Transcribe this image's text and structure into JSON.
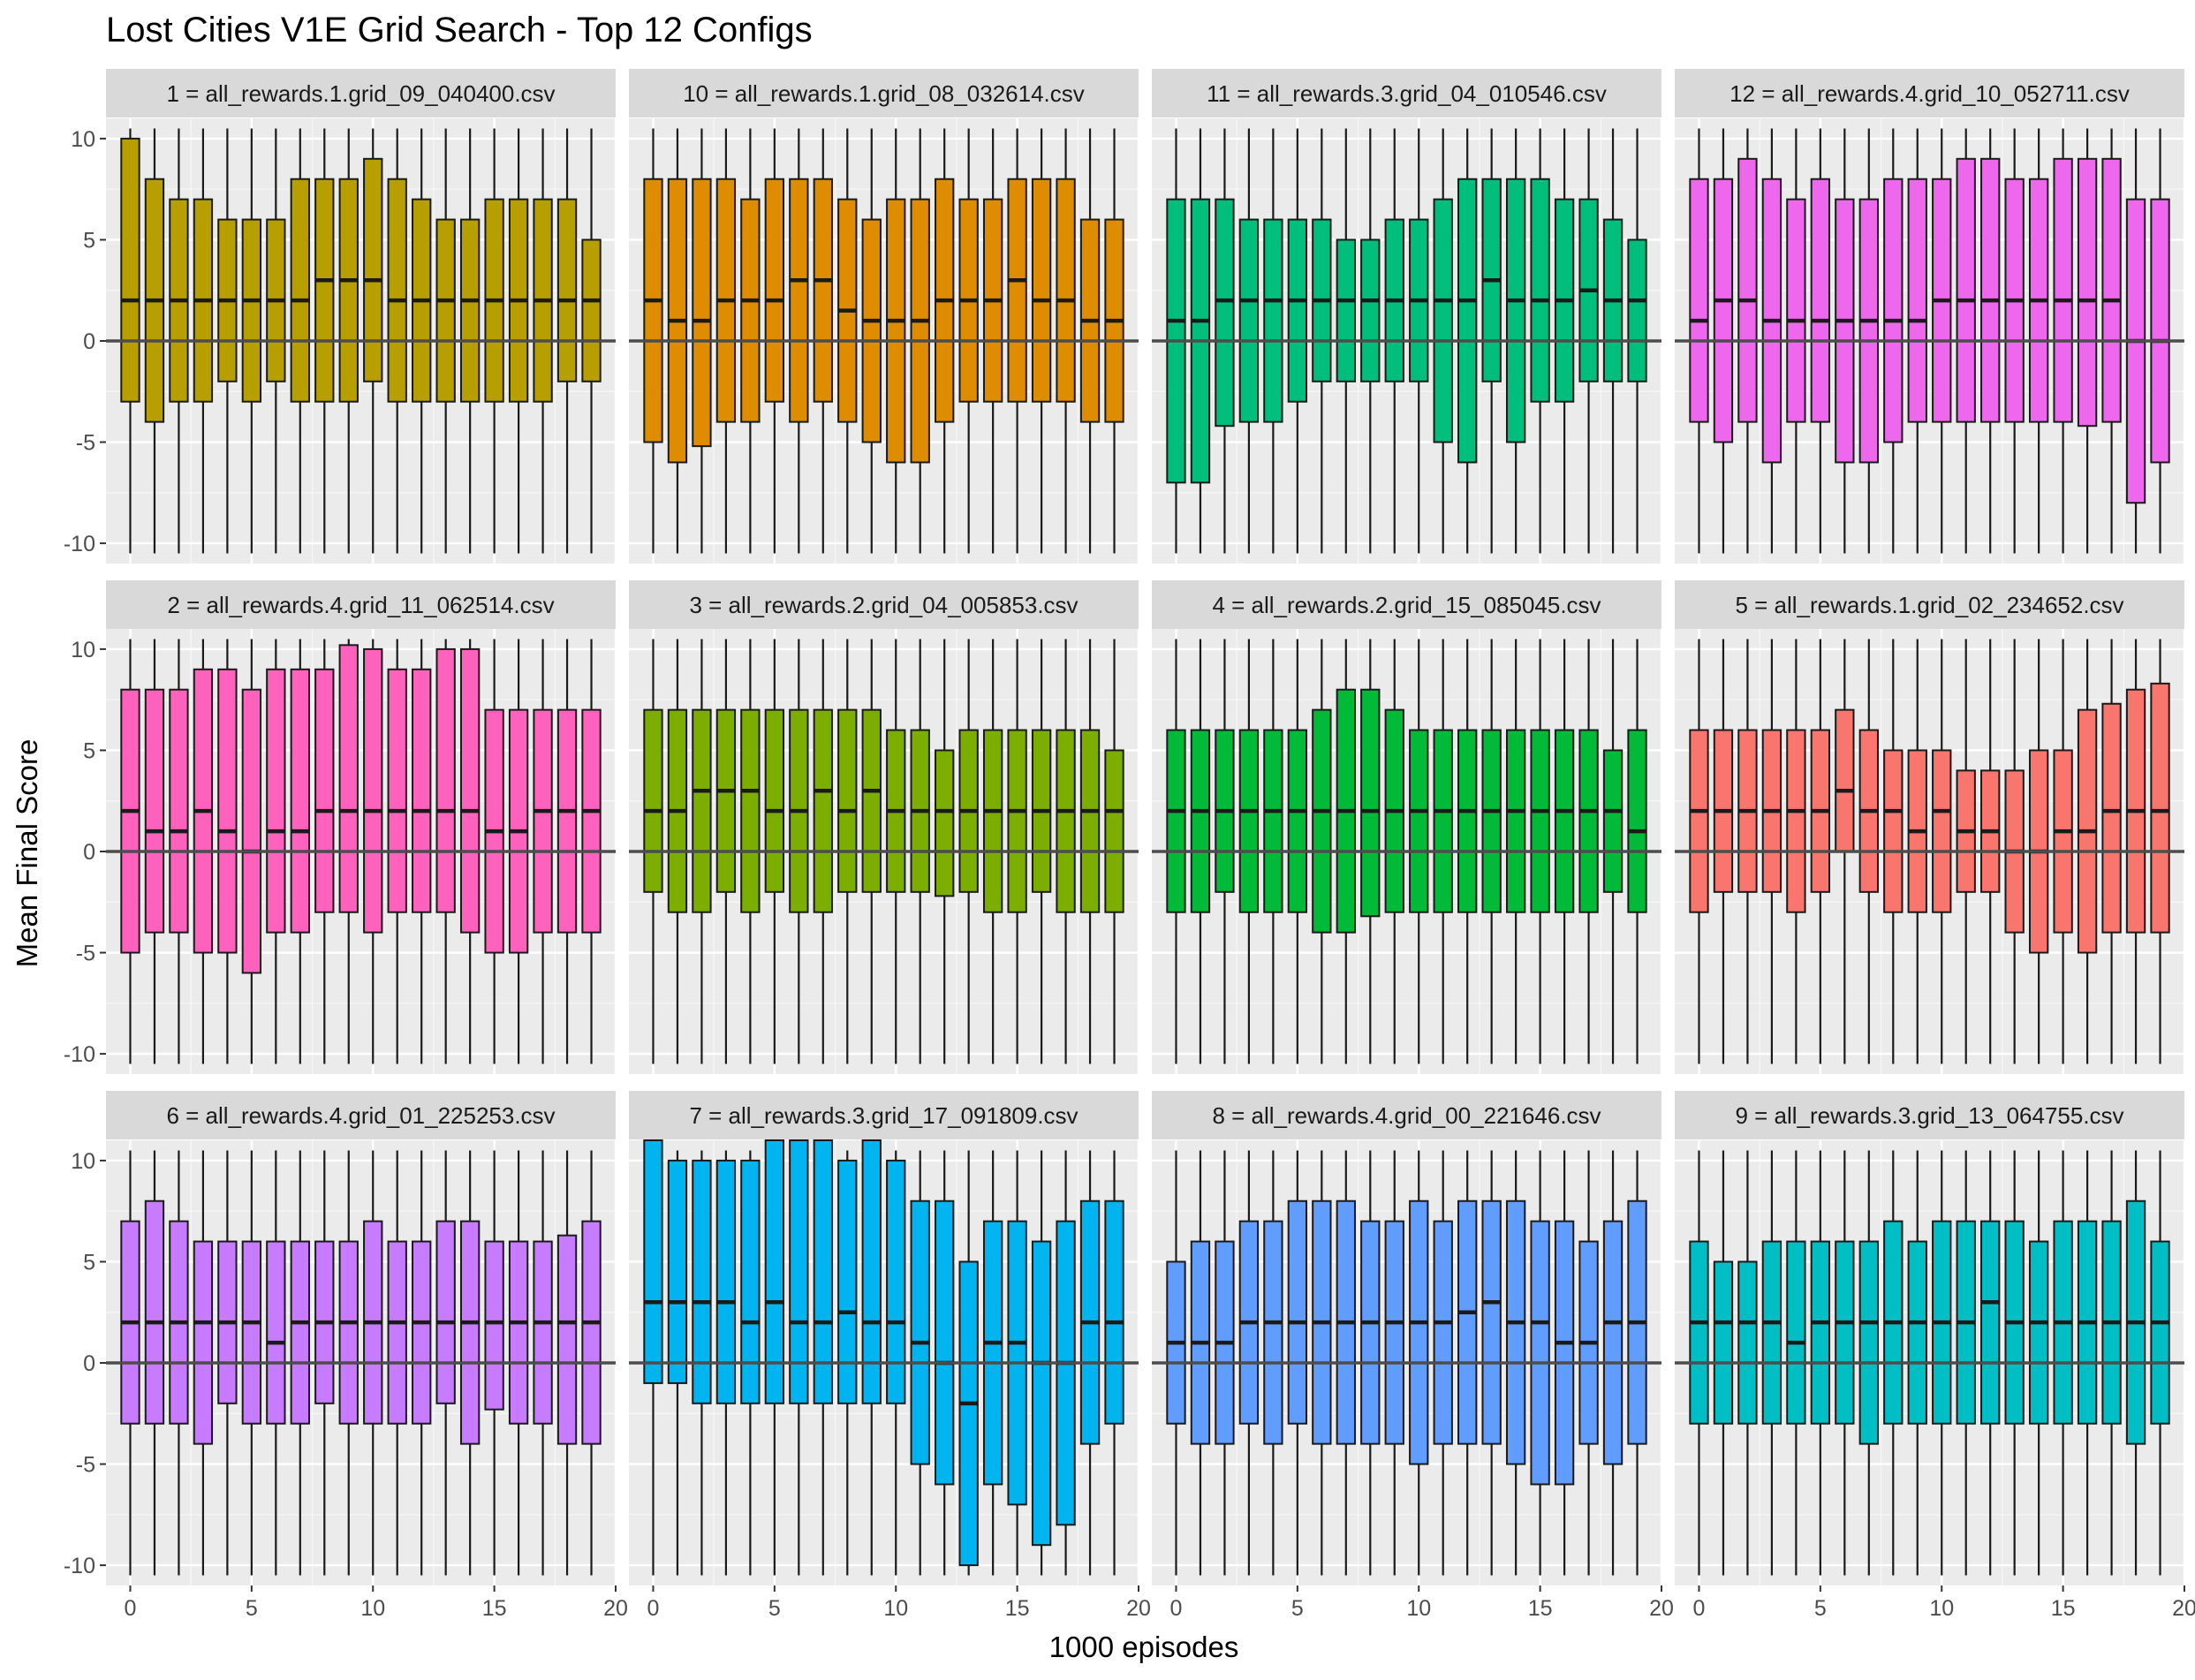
{
  "chart_data": {
    "type": "boxplot",
    "title": "Lost Cities V1E Grid Search - Top 12 Configs",
    "xlabel": "1000 episodes",
    "ylabel": "Mean Final Score",
    "xlim": [
      -1,
      20
    ],
    "ylim": [
      -11,
      11
    ],
    "x_ticks": [
      0,
      5,
      10,
      15,
      20
    ],
    "y_ticks": [
      -10,
      -5,
      0,
      5,
      10
    ],
    "whisker_range": [
      -10.5,
      10.5
    ],
    "reference_line_y": 0,
    "grid": true,
    "layout": "facet_wrap 3 rows x 4 columns",
    "panels": [
      {
        "label": "1 = all_rewards.1.grid_09_040400.csv",
        "color": "#B79F00",
        "q1": [
          -3,
          -4,
          -3,
          -3,
          -2,
          -3,
          -2,
          -3,
          -3,
          -3,
          -2,
          -3,
          -3,
          -3,
          -3,
          -3,
          -3,
          -3,
          -2,
          -2
        ],
        "median": [
          2,
          2,
          2,
          2,
          2,
          2,
          2,
          2,
          3,
          3,
          3,
          2,
          2,
          2,
          2,
          2,
          2,
          2,
          2,
          2
        ],
        "q3": [
          10,
          8,
          7,
          7,
          6,
          6,
          6,
          8,
          8,
          8,
          9,
          8,
          7,
          6,
          6,
          7,
          7,
          7,
          7,
          5
        ]
      },
      {
        "label": "10 = all_rewards.1.grid_08_032614.csv",
        "color": "#DE8C00",
        "q1": [
          -5,
          -6,
          -5.2,
          -4,
          -4,
          -3,
          -4,
          -3,
          -4,
          -5,
          -6,
          -6,
          -4,
          -3,
          -3,
          -3,
          -3,
          -3,
          -4,
          -4
        ],
        "median": [
          2,
          1,
          1,
          2,
          2,
          2,
          3,
          3,
          1.5,
          1,
          1,
          1,
          2,
          2,
          2,
          3,
          2,
          2,
          1,
          1
        ],
        "q3": [
          8,
          8,
          8,
          8,
          7,
          8,
          8,
          8,
          7,
          6,
          7,
          7,
          8,
          7,
          7,
          8,
          8,
          8,
          6,
          6
        ]
      },
      {
        "label": "11 = all_rewards.3.grid_04_010546.csv",
        "color": "#00BF7D",
        "q1": [
          -7,
          -7,
          -4.2,
          -4,
          -4,
          -3,
          -2,
          -2,
          -2,
          -2,
          -2,
          -5,
          -6,
          -2,
          -5,
          -3,
          -3,
          -2,
          -2,
          -2
        ],
        "median": [
          1,
          1,
          2,
          2,
          2,
          2,
          2,
          2,
          2,
          2,
          2,
          2,
          2,
          3,
          2,
          2,
          2,
          2.5,
          2,
          2
        ],
        "q3": [
          7,
          7,
          7,
          6,
          6,
          6,
          6,
          5,
          5,
          6,
          6,
          7,
          8,
          8,
          8,
          8,
          7,
          7,
          6,
          5
        ]
      },
      {
        "label": "12 = all_rewards.4.grid_10_052711.csv",
        "color": "#ED68ED",
        "q1": [
          -4,
          -5,
          -4,
          -6,
          -4,
          -4,
          -6,
          -6,
          -5,
          -4,
          -4,
          -4,
          -4,
          -4,
          -4,
          -4,
          -4.2,
          -4,
          -8,
          -6
        ],
        "median": [
          1,
          2,
          2,
          1,
          1,
          1,
          1,
          1,
          1,
          1,
          2,
          2,
          2,
          2,
          2,
          2,
          2,
          2,
          0,
          0
        ],
        "q3": [
          8,
          8,
          9,
          8,
          7,
          8,
          7,
          7,
          8,
          8,
          8,
          9,
          9,
          8,
          8,
          9,
          9,
          9,
          7,
          7
        ]
      },
      {
        "label": "2 = all_rewards.4.grid_11_062514.csv",
        "color": "#FF62BC",
        "q1": [
          -5,
          -4,
          -4,
          -5,
          -5,
          -6,
          -4,
          -4,
          -3,
          -3,
          -4,
          -3,
          -3,
          -3,
          -4,
          -5,
          -5,
          -4,
          -4,
          -4
        ],
        "median": [
          2,
          1,
          1,
          2,
          1,
          0,
          1,
          1,
          2,
          2,
          2,
          2,
          2,
          2,
          2,
          1,
          1,
          2,
          2,
          2
        ],
        "q3": [
          8,
          8,
          8,
          9,
          9,
          8,
          9,
          9,
          9,
          10.2,
          10,
          9,
          9,
          10,
          10,
          7,
          7,
          7,
          7,
          7
        ]
      },
      {
        "label": "3 = all_rewards.2.grid_04_005853.csv",
        "color": "#7CAE00",
        "q1": [
          -2,
          -3,
          -3,
          -2,
          -3,
          -2,
          -3,
          -3,
          -2,
          -2,
          -2,
          -2,
          -2.2,
          -2,
          -3,
          -3,
          -2,
          -3,
          -3,
          -3
        ],
        "median": [
          2,
          2,
          3,
          3,
          3,
          2,
          2,
          3,
          2,
          3,
          2,
          2,
          2,
          2,
          2,
          2,
          2,
          2,
          2,
          2
        ],
        "q3": [
          7,
          7,
          7,
          7,
          7,
          7,
          7,
          7,
          7,
          7,
          6,
          6,
          5,
          6,
          6,
          6,
          6,
          6,
          6,
          5
        ]
      },
      {
        "label": "4 = all_rewards.2.grid_15_085045.csv",
        "color": "#00BA38",
        "q1": [
          -3,
          -3,
          -2,
          -3,
          -3,
          -3,
          -4,
          -4,
          -3.2,
          -3,
          -3,
          -3,
          -3,
          -3,
          -3,
          -3,
          -3,
          -3,
          -2,
          -3
        ],
        "median": [
          2,
          2,
          2,
          2,
          2,
          2,
          2,
          2,
          2,
          2,
          2,
          2,
          2,
          2,
          2,
          2,
          2,
          2,
          2,
          1
        ],
        "q3": [
          6,
          6,
          6,
          6,
          6,
          6,
          7,
          8,
          8,
          7,
          6,
          6,
          6,
          6,
          6,
          6,
          6,
          6,
          5,
          6
        ]
      },
      {
        "label": "5 = all_rewards.1.grid_02_234652.csv",
        "color": "#F8766D",
        "q1": [
          -3,
          -2,
          -2,
          -2,
          -3,
          -2,
          0,
          -2,
          -3,
          -3,
          -3,
          -2,
          -2,
          -4,
          -5,
          -4,
          -5,
          -4,
          -4,
          -4
        ],
        "median": [
          2,
          2,
          2,
          2,
          2,
          2,
          3,
          2,
          2,
          1,
          2,
          1,
          1,
          0,
          0,
          1,
          1,
          2,
          2,
          2
        ],
        "q3": [
          6,
          6,
          6,
          6,
          6,
          6,
          7,
          6,
          5,
          5,
          5,
          4,
          4,
          4,
          5,
          5,
          7,
          7.3,
          8,
          8.3
        ]
      },
      {
        "label": "6 = all_rewards.4.grid_01_225253.csv",
        "color": "#C77CFF",
        "q1": [
          -3,
          -3,
          -3,
          -4,
          -2,
          -3,
          -3,
          -3,
          -2,
          -3,
          -3,
          -3,
          -3,
          -2,
          -4,
          -2.3,
          -3,
          -3,
          -4,
          -4
        ],
        "median": [
          2,
          2,
          2,
          2,
          2,
          2,
          1,
          2,
          2,
          2,
          2,
          2,
          2,
          2,
          2,
          2,
          2,
          2,
          2,
          2
        ],
        "q3": [
          7,
          8,
          7,
          6,
          6,
          6,
          6,
          6,
          6,
          6,
          7,
          6,
          6,
          7,
          7,
          6,
          6,
          6,
          6.3,
          7
        ]
      },
      {
        "label": "7 = all_rewards.3.grid_17_091809.csv",
        "color": "#00B4EF",
        "q1": [
          -1,
          -1,
          -2,
          -2,
          -2,
          -2,
          -2,
          -2,
          -2,
          -2,
          -2,
          -5,
          -6,
          -10,
          -6,
          -7,
          -9,
          -8,
          -4,
          -3
        ],
        "median": [
          3,
          3,
          3,
          3,
          2,
          3,
          2,
          2,
          2.5,
          2,
          2,
          1,
          0,
          -2,
          1,
          1,
          0,
          0,
          2,
          2
        ],
        "q3": [
          11,
          10,
          10,
          10,
          10,
          11,
          11,
          11,
          10,
          11,
          10,
          8,
          8,
          5,
          7,
          7,
          6,
          7,
          8,
          8
        ]
      },
      {
        "label": "8 = all_rewards.4.grid_00_221646.csv",
        "color": "#619CFF",
        "q1": [
          -3,
          -4,
          -4,
          -3,
          -4,
          -3,
          -4,
          -4,
          -4,
          -4,
          -5,
          -4,
          -4,
          -4,
          -5,
          -6,
          -6,
          -4,
          -5,
          -4
        ],
        "median": [
          1,
          1,
          1,
          2,
          2,
          2,
          2,
          2,
          2,
          2,
          2,
          2,
          2.5,
          3,
          2,
          2,
          1,
          1,
          2,
          2
        ],
        "q3": [
          5,
          6,
          6,
          7,
          7,
          8,
          8,
          8,
          7,
          7,
          8,
          7,
          8,
          8,
          8,
          7,
          7,
          6,
          7,
          8
        ]
      },
      {
        "label": "9 = all_rewards.3.grid_13_064755.csv",
        "color": "#00BFC4",
        "q1": [
          -3,
          -3,
          -3,
          -3,
          -3,
          -3,
          -3,
          -4,
          -3,
          -3,
          -3,
          -3,
          -3,
          -3,
          -3,
          -3,
          -3,
          -3,
          -4,
          -3
        ],
        "median": [
          2,
          2,
          2,
          2,
          1,
          2,
          2,
          2,
          2,
          2,
          2,
          2,
          3,
          2,
          2,
          2,
          2,
          2,
          2,
          2
        ],
        "q3": [
          6,
          5,
          5,
          6,
          6,
          6,
          6,
          6,
          7,
          6,
          7,
          7,
          7,
          7,
          6,
          7,
          7,
          7,
          8,
          6
        ]
      }
    ]
  }
}
